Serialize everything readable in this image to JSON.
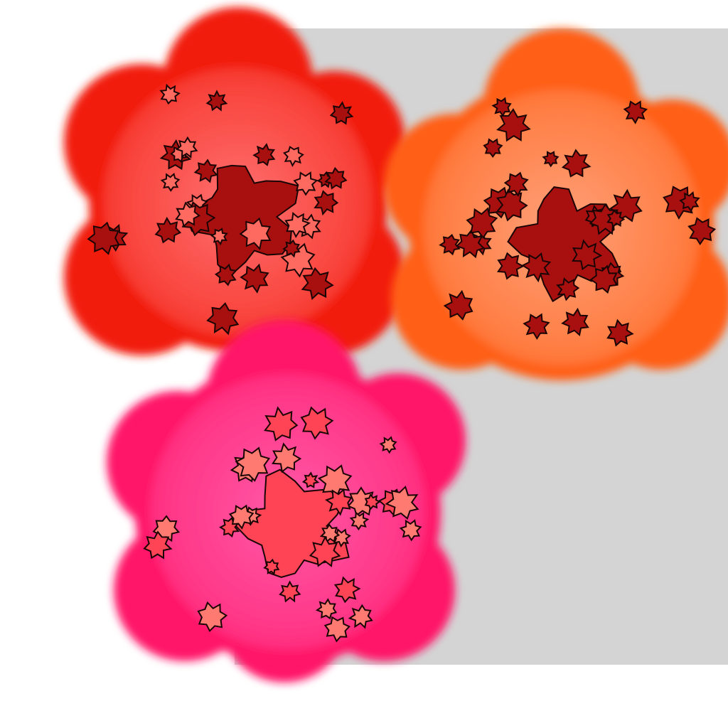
{
  "backdrop_color": "#d4d4d4",
  "page_background": "#ffffff",
  "blobs": [
    {
      "name": "red-blob",
      "edge_color": "#f21a0a",
      "center_color": "#ff7070",
      "leaf_fill": "#a81010",
      "leaf_light_fill": "#ff6a60"
    },
    {
      "name": "orange-blob",
      "edge_color": "#ff5f12",
      "center_color": "#ffa07a",
      "leaf_fill": "#a81010",
      "leaf_light_fill": "#cf1d12"
    },
    {
      "name": "pink-blob",
      "edge_color": "#ff1568",
      "center_color": "#ff5aa8",
      "leaf_fill": "#ff4455",
      "leaf_light_fill": "#ff7a70"
    }
  ]
}
